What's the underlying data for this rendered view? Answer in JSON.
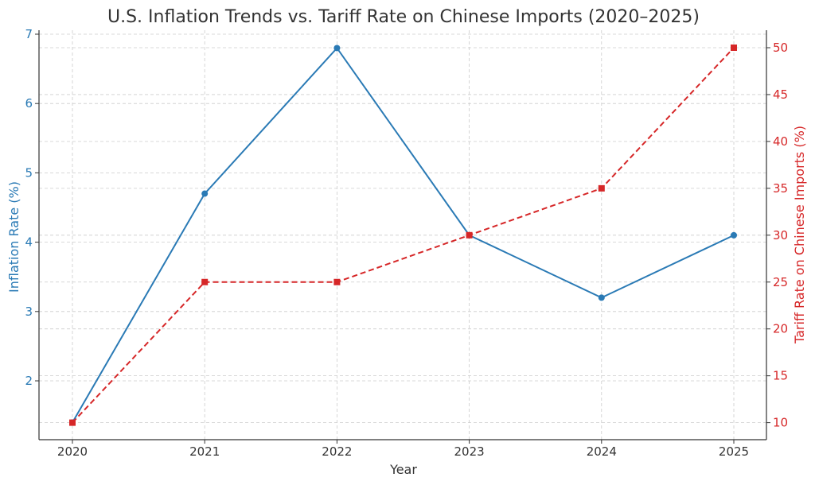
{
  "chart_data": {
    "type": "line",
    "title": "U.S. Inflation Trends vs. Tariff Rate on Chinese Imports (2020–2025)",
    "xlabel": "Year",
    "ylabel_left": "Inflation Rate (%)",
    "ylabel_right": "Tariff Rate on Chinese Imports (%)",
    "categories": [
      "2020",
      "2021",
      "2022",
      "2023",
      "2024",
      "2025"
    ],
    "y_left_ticks": [
      "2",
      "3",
      "4",
      "5",
      "6",
      "7"
    ],
    "y_right_ticks": [
      "10",
      "15",
      "20",
      "25",
      "30",
      "35",
      "40",
      "45",
      "50"
    ],
    "ylim_left": [
      1.27,
      7.0
    ],
    "ylim_right": [
      8.5,
      52.5
    ],
    "grid": true,
    "series": [
      {
        "axis": "left",
        "values": [
          1.4,
          4.7,
          6.8,
          4.1,
          3.2,
          4.1
        ],
        "color": "#2a7ab5",
        "line_style": "solid",
        "marker": "circle"
      },
      {
        "axis": "right",
        "values": [
          10,
          25,
          25,
          30,
          35,
          50
        ],
        "color": "#d62728",
        "line_style": "dashed",
        "marker": "square"
      }
    ]
  }
}
